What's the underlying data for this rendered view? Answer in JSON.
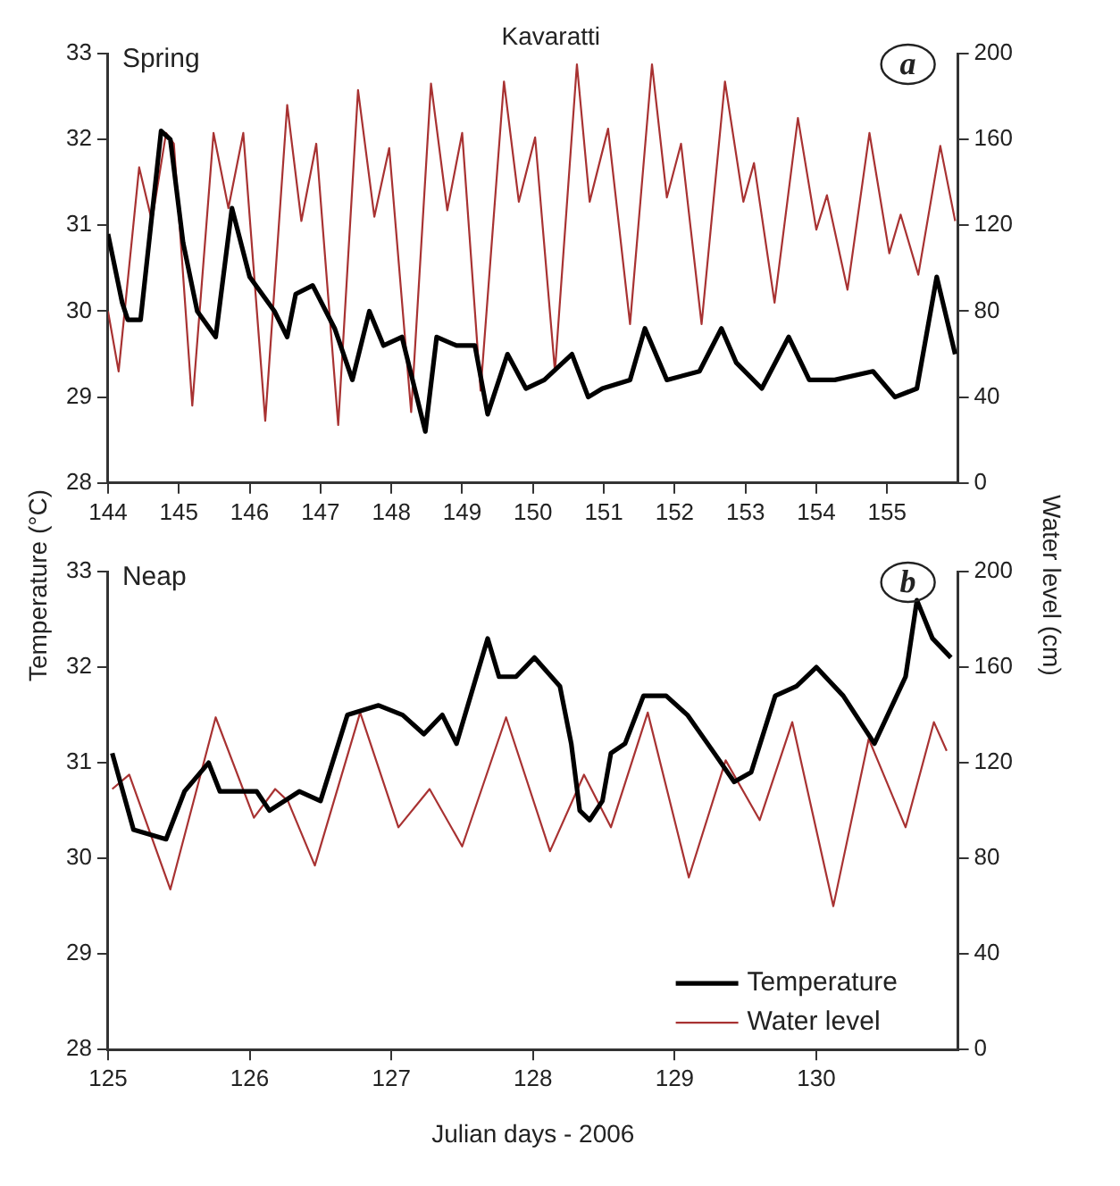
{
  "chart_data": [
    {
      "type": "line",
      "title": "Kavaratti",
      "ylabel": "Temperature (°C)",
      "y2label": "Water level (cm)",
      "annotations": [
        "Spring",
        "a"
      ],
      "xlim": [
        144,
        156
      ],
      "xticks": [
        144,
        145,
        146,
        147,
        148,
        149,
        150,
        151,
        152,
        153,
        154,
        155
      ],
      "ylim": [
        28,
        33
      ],
      "yticks": [
        28,
        29,
        30,
        31,
        32,
        33
      ],
      "y2lim": [
        0,
        200
      ],
      "y2ticks": [
        0,
        40,
        80,
        120,
        160,
        200
      ],
      "grid": false,
      "line_style": "solid",
      "series": [
        {
          "color": "#000000",
          "x": [
            144.0,
            144.2,
            144.28,
            144.46,
            144.75,
            144.88,
            145.06,
            145.26,
            145.52,
            145.75,
            146.0,
            146.35,
            146.53,
            146.65,
            146.89,
            147.2,
            147.45,
            147.69,
            147.89,
            148.15,
            148.33,
            148.48,
            148.64,
            148.92,
            149.18,
            149.36,
            149.64,
            149.9,
            150.16,
            150.55,
            150.78,
            150.98,
            151.37,
            151.58,
            151.89,
            152.35,
            152.66,
            152.87,
            153.23,
            153.61,
            153.9,
            154.26,
            154.8,
            155.11,
            155.42,
            155.7,
            155.96
          ],
          "values": [
            30.9,
            30.1,
            29.9,
            29.9,
            32.1,
            32.0,
            30.8,
            30.0,
            29.7,
            31.2,
            30.4,
            30.0,
            29.7,
            30.2,
            30.3,
            29.8,
            29.2,
            30.0,
            29.6,
            29.7,
            29.1,
            28.6,
            29.7,
            29.6,
            29.6,
            28.8,
            29.5,
            29.1,
            29.2,
            29.5,
            29.0,
            29.1,
            29.2,
            29.8,
            29.2,
            29.3,
            29.8,
            29.4,
            29.1,
            29.7,
            29.2,
            29.2,
            29.3,
            29.0,
            29.1,
            30.4,
            29.5
          ]
        },
        {
          "color": "#a83232",
          "axis": "y2",
          "x": [
            144.0,
            144.15,
            144.44,
            144.62,
            144.82,
            144.93,
            145.19,
            145.49,
            145.7,
            145.91,
            146.22,
            146.53,
            146.73,
            146.94,
            147.25,
            147.53,
            147.76,
            147.97,
            148.28,
            148.56,
            148.79,
            149.0,
            149.26,
            149.59,
            149.8,
            150.03,
            150.31,
            150.62,
            150.8,
            151.06,
            151.37,
            151.68,
            151.89,
            152.09,
            152.38,
            152.71,
            152.97,
            153.12,
            153.41,
            153.74,
            154.0,
            154.15,
            154.44,
            154.75,
            155.03,
            155.19,
            155.44,
            155.75,
            155.96
          ],
          "values": [
            80,
            52,
            147,
            122,
            163,
            158,
            36,
            163,
            128,
            163,
            29,
            176,
            122,
            158,
            27,
            183,
            124,
            156,
            33,
            186,
            127,
            163,
            43,
            187,
            131,
            161,
            52,
            195,
            131,
            165,
            74,
            195,
            133,
            158,
            74,
            187,
            131,
            149,
            84,
            170,
            118,
            134,
            90,
            163,
            107,
            125,
            97,
            157,
            122
          ]
        }
      ]
    },
    {
      "type": "line",
      "xlabel": "Julian days - 2006",
      "annotations": [
        "Neap",
        "b"
      ],
      "legend": "bottom right",
      "xlim": [
        125,
        131
      ],
      "xticks": [
        125,
        126,
        127,
        128,
        129,
        130
      ],
      "ylim": [
        28,
        33
      ],
      "yticks": [
        28,
        29,
        30,
        31,
        32,
        33
      ],
      "y2lim": [
        0,
        200
      ],
      "y2ticks": [
        0,
        40,
        80,
        120,
        160,
        200
      ],
      "grid": false,
      "line_style": "solid",
      "series": [
        {
          "name": "Temperature",
          "color": "#000000",
          "x": [
            125.03,
            125.18,
            125.41,
            125.54,
            125.71,
            125.79,
            126.05,
            126.14,
            126.35,
            126.5,
            126.69,
            126.91,
            127.08,
            127.23,
            127.36,
            127.46,
            127.68,
            127.76,
            127.88,
            128.01,
            128.19,
            128.27,
            128.33,
            128.4,
            128.49,
            128.55,
            128.65,
            128.78,
            128.94,
            129.09,
            129.28,
            129.42,
            129.54,
            129.71,
            129.86,
            130.0,
            130.19,
            130.41,
            130.63,
            130.71,
            130.82,
            130.95
          ],
          "values": [
            31.1,
            30.3,
            30.2,
            30.7,
            31.0,
            30.7,
            30.7,
            30.5,
            30.7,
            30.6,
            31.5,
            31.6,
            31.5,
            31.3,
            31.5,
            31.2,
            32.3,
            31.9,
            31.9,
            32.1,
            31.8,
            31.2,
            30.5,
            30.4,
            30.6,
            31.1,
            31.2,
            31.7,
            31.7,
            31.5,
            31.1,
            30.8,
            30.9,
            31.7,
            31.8,
            32.0,
            31.7,
            31.2,
            31.9,
            32.7,
            32.3,
            32.1
          ]
        },
        {
          "name": "Water level",
          "color": "#a83232",
          "axis": "y2",
          "x": [
            125.03,
            125.15,
            125.44,
            125.76,
            126.03,
            126.18,
            126.27,
            126.46,
            126.78,
            127.05,
            127.27,
            127.5,
            127.81,
            128.12,
            128.36,
            128.55,
            128.81,
            129.1,
            129.36,
            129.6,
            129.83,
            130.12,
            130.37,
            130.63,
            130.83,
            130.92
          ],
          "values": [
            109,
            115,
            67,
            139,
            97,
            109,
            104,
            77,
            141,
            93,
            109,
            85,
            139,
            83,
            115,
            93,
            141,
            72,
            121,
            96,
            137,
            60,
            130,
            93,
            137,
            125
          ]
        }
      ]
    }
  ]
}
